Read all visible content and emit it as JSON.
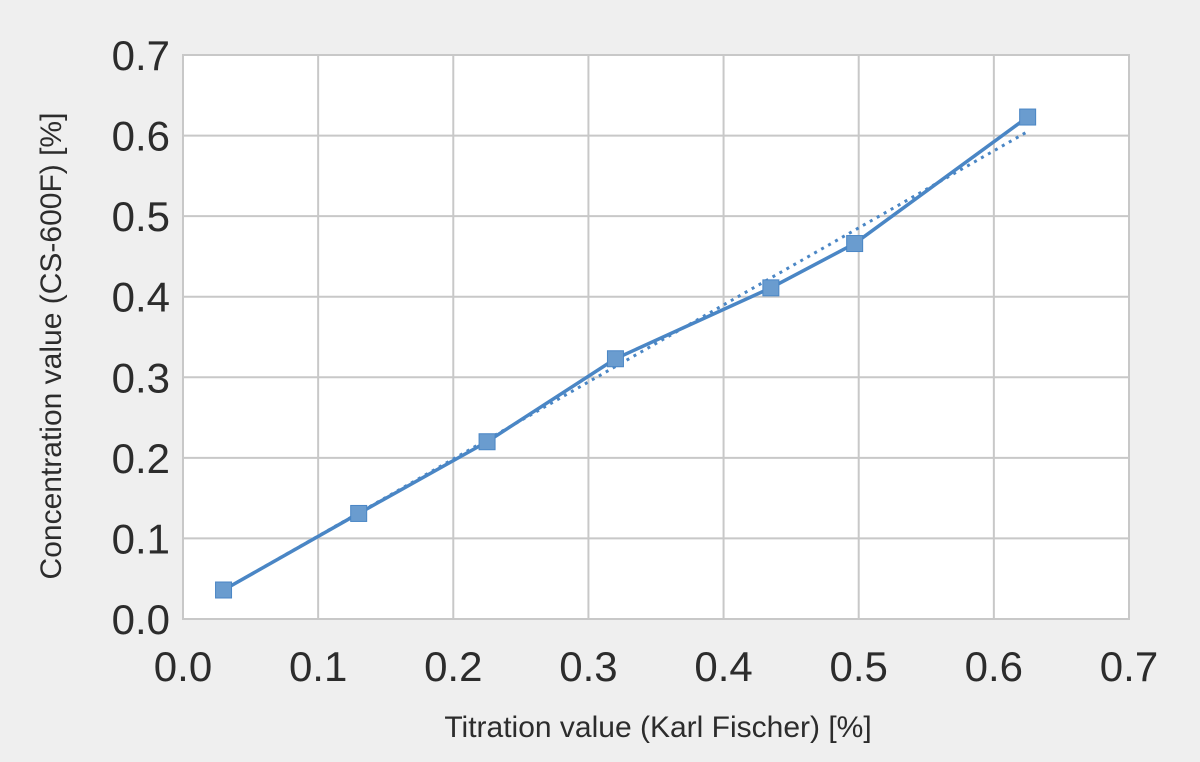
{
  "chart_data": {
    "type": "line",
    "xlabel": "Titration value (Karl Fischer) [%]",
    "ylabel": "Concentration value (CS-600F) [%]",
    "xlim": [
      0,
      0.7
    ],
    "ylim": [
      0,
      0.7
    ],
    "x_ticks": [
      "0.0",
      "0.1",
      "0.2",
      "0.3",
      "0.4",
      "0.5",
      "0.6",
      "0.7"
    ],
    "y_ticks": [
      "0.0",
      "0.1",
      "0.2",
      "0.3",
      "0.4",
      "0.5",
      "0.6",
      "0.7"
    ],
    "grid": true,
    "series": [
      {
        "x": [
          0.03,
          0.13,
          0.225,
          0.32,
          0.435,
          0.497,
          0.625
        ],
        "y": [
          0.036,
          0.131,
          0.22,
          0.323,
          0.411,
          0.466,
          0.623
        ],
        "color": "#4a86c5",
        "marker": "square"
      }
    ],
    "trendline": {
      "style": "dotted",
      "color": "#4a86c5",
      "x": [
        0.03,
        0.625
      ],
      "y": [
        0.036,
        0.605
      ]
    }
  }
}
